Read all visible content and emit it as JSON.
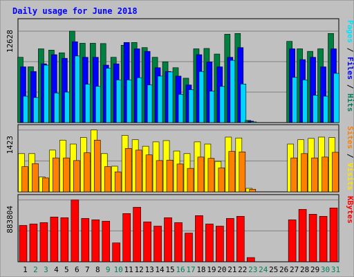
{
  "chart_data": {
    "type": "bar",
    "title": "Daily usage for June 2018",
    "categories": [
      "1",
      "2",
      "3",
      "4",
      "5",
      "6",
      "7",
      "8",
      "9",
      "10",
      "11",
      "12",
      "13",
      "14",
      "15",
      "16",
      "17",
      "18",
      "19",
      "20",
      "21",
      "22",
      "23",
      "24",
      "25",
      "26",
      "27",
      "28",
      "29",
      "30",
      "31"
    ],
    "weekend_days": [
      "2",
      "3",
      "9",
      "10",
      "16",
      "17",
      "23",
      "24",
      "30",
      "31"
    ],
    "panels": [
      {
        "id": "hits",
        "ymax_label": "12628",
        "ymax": 12628,
        "axis_labels": [
          {
            "text": "Hits",
            "color": "#00805c"
          },
          {
            "text": "Files",
            "color": "#0000ff"
          },
          {
            "text": "Pages",
            "color": "#00e4ff"
          }
        ],
        "series": [
          {
            "name": "Hits",
            "color": "#008040",
            "values": [
              9020,
              7700,
              10190,
              10010,
              9640,
              12628,
              10960,
              10960,
              10920,
              9020,
              10680,
              11070,
              10360,
              9020,
              8400,
              7580,
              6130,
              10190,
              10240,
              9470,
              12208,
              12313,
              300,
              0,
              0,
              0,
              11220,
              10190,
              9840,
              10190,
              12313
            ]
          },
          {
            "name": "Files",
            "color": "#0000ff",
            "values": [
              7700,
              7060,
              8120,
              9380,
              8880,
              11170,
              9020,
              9020,
              7940,
              8120,
              11070,
              10190,
              9840,
              7580,
              7060,
              6420,
              5200,
              9380,
              8380,
              7700,
              9020,
              10360,
              200,
              0,
              0,
              0,
              10190,
              8700,
              9020,
              7700,
              10190
            ]
          },
          {
            "name": "Pages",
            "color": "#00d4ff",
            "values": [
              3640,
              3460,
              7940,
              4090,
              4210,
              9200,
              5300,
              5010,
              7500,
              5900,
              5900,
              6200,
              5200,
              6420,
              7000,
              3900,
              4550,
              7060,
              4340,
              4990,
              8600,
              5330,
              100,
              0,
              0,
              0,
              6240,
              5900,
              3780,
              3640,
              6800
            ]
          }
        ]
      },
      {
        "id": "visits",
        "ymax_label": "1423",
        "ymax": 1423,
        "axis_labels": [
          {
            "text": "Visits",
            "color": "#ffe400"
          },
          {
            "text": "Sites",
            "color": "#ff8000"
          }
        ],
        "series": [
          {
            "name": "Visits",
            "color": "#ffff00",
            "values": [
              880,
              880,
              340,
              960,
              1190,
              1100,
              1250,
              1423,
              880,
              590,
              1300,
              1200,
              1050,
              1150,
              1180,
              940,
              880,
              1150,
              1100,
              700,
              1260,
              1240,
              80,
              0,
              0,
              0,
              1100,
              1200,
              1230,
              1260,
              1250
            ]
          },
          {
            "name": "Sites",
            "color": "#ff8000",
            "values": [
              580,
              650,
              320,
              780,
              780,
              720,
              900,
              1190,
              580,
              460,
              1000,
              960,
              850,
              720,
              730,
              640,
              540,
              800,
              770,
              550,
              930,
              920,
              60,
              0,
              0,
              0,
              780,
              880,
              780,
              800,
              910
            ]
          }
        ]
      },
      {
        "id": "kbytes",
        "ymax_label": "883804",
        "ymax": 883804,
        "axis_labels": [
          {
            "text": "KBytes",
            "color": "#ff0000"
          }
        ],
        "series": [
          {
            "name": "KBytes",
            "color": "#ff0000",
            "values": [
              520000,
              540000,
              560000,
              640000,
              630000,
              883804,
              620000,
              600000,
              580000,
              270000,
              690000,
              780000,
              570000,
              510000,
              630000,
              560000,
              410000,
              660000,
              540000,
              510000,
              620000,
              650000,
              60000,
              0,
              0,
              0,
              600000,
              750000,
              680000,
              650000,
              770000
            ]
          }
        ]
      }
    ]
  }
}
